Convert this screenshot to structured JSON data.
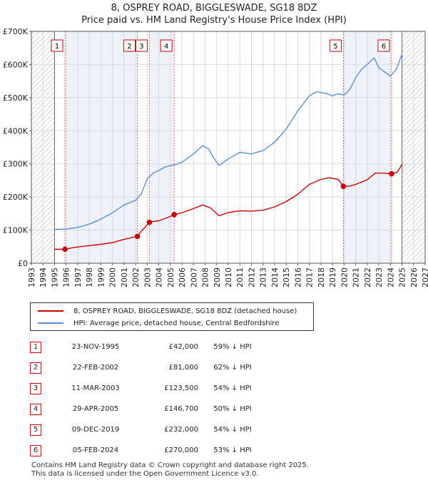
{
  "header": {
    "title": "8, OSPREY ROAD, BIGGLESWADE, SG18 8DZ",
    "subtitle": "Price paid vs. HM Land Registry's House Price Index (HPI)"
  },
  "legend": {
    "property_label": "8, OSPREY ROAD, BIGGLESWADE, SG18 8DZ (detached house)",
    "hpi_label": "HPI: Average price, detached house, Central Bedfordshire"
  },
  "colors": {
    "property": "#cc0000",
    "hpi": "#5b8fd4",
    "shade": "#eef2fb",
    "hatch": "#999999",
    "grid": "#d9d9d9",
    "marker_line": "#e06666"
  },
  "chart_data": {
    "type": "line",
    "xlim": [
      1993,
      2027
    ],
    "ylim": [
      0,
      700000
    ],
    "x_ticks": [
      1993,
      1994,
      1995,
      1996,
      1997,
      1998,
      1999,
      2000,
      2001,
      2002,
      2003,
      2004,
      2005,
      2006,
      2007,
      2008,
      2009,
      2010,
      2011,
      2012,
      2013,
      2014,
      2015,
      2016,
      2017,
      2018,
      2019,
      2020,
      2021,
      2022,
      2023,
      2024,
      2025,
      2026,
      2027
    ],
    "y_ticks": [
      {
        "value": 0,
        "label": "£0"
      },
      {
        "value": 100000,
        "label": "£100K"
      },
      {
        "value": 200000,
        "label": "£200K"
      },
      {
        "value": 300000,
        "label": "£300K"
      },
      {
        "value": 400000,
        "label": "£400K"
      },
      {
        "value": 500000,
        "label": "£500K"
      },
      {
        "value": 600000,
        "label": "£600K"
      },
      {
        "value": 700000,
        "label": "£700K"
      }
    ],
    "grid": true,
    "data_range_x": [
      1995.0,
      2025.0
    ],
    "series": [
      {
        "name": "8, OSPREY ROAD, BIGGLESWADE, SG18 8DZ (detached house)",
        "color": "#cc0000",
        "x": [
          1995.0,
          1995.9,
          1996.5,
          1997.0,
          1998.0,
          1999.0,
          2000.0,
          2001.0,
          2002.15,
          2002.5,
          2003.19,
          2003.5,
          2004.0,
          2004.7,
          2005.33,
          2006.0,
          2007.0,
          2007.8,
          2008.5,
          2009.2,
          2010.0,
          2011.0,
          2012.0,
          2013.0,
          2014.0,
          2015.0,
          2016.0,
          2017.0,
          2018.0,
          2018.7,
          2019.5,
          2019.94,
          2020.5,
          2021.0,
          2022.0,
          2022.7,
          2023.3,
          2024.1,
          2024.6,
          2025.0
        ],
        "y": [
          42000,
          42000,
          46000,
          49000,
          53000,
          57000,
          62000,
          72000,
          81000,
          97000,
          123500,
          126000,
          128000,
          137000,
          146700,
          152000,
          165000,
          176000,
          166000,
          143000,
          153000,
          158000,
          157000,
          160000,
          170000,
          186000,
          208000,
          238000,
          253000,
          258000,
          253000,
          232000,
          233000,
          238000,
          252000,
          272000,
          272000,
          270000,
          275000,
          298000
        ]
      },
      {
        "name": "HPI: Average price, detached house, Central Bedfordshire",
        "color": "#5b8fd4",
        "x": [
          1995.0,
          1996.0,
          1997.0,
          1998.0,
          1999.0,
          2000.0,
          2001.0,
          2002.0,
          2002.5,
          2003.0,
          2003.5,
          2004.0,
          2004.5,
          2005.0,
          2005.5,
          2006.0,
          2007.0,
          2007.8,
          2008.3,
          2008.7,
          2009.2,
          2010.0,
          2011.0,
          2012.0,
          2013.0,
          2014.0,
          2015.0,
          2016.0,
          2017.0,
          2017.6,
          2018.5,
          2019.0,
          2019.5,
          2020.0,
          2020.5,
          2021.0,
          2021.5,
          2022.0,
          2022.6,
          2023.0,
          2023.6,
          2024.0,
          2024.5,
          2025.0
        ],
        "y": [
          102000,
          103000,
          108000,
          118000,
          133000,
          152000,
          176000,
          190000,
          210000,
          255000,
          272000,
          280000,
          290000,
          295000,
          298000,
          305000,
          330000,
          355000,
          345000,
          320000,
          295000,
          315000,
          335000,
          330000,
          340000,
          365000,
          405000,
          460000,
          505000,
          518000,
          512000,
          505000,
          512000,
          508000,
          525000,
          560000,
          585000,
          600000,
          620000,
          590000,
          575000,
          565000,
          585000,
          630000
        ]
      }
    ],
    "sale_markers": [
      {
        "id": "1",
        "x": 1995.9,
        "y": 42000
      },
      {
        "id": "2",
        "x": 2002.15,
        "y": 81000
      },
      {
        "id": "3",
        "x": 2003.19,
        "y": 123500
      },
      {
        "id": "4",
        "x": 2005.33,
        "y": 146700
      },
      {
        "id": "5",
        "x": 2019.94,
        "y": 232000
      },
      {
        "id": "6",
        "x": 2024.1,
        "y": 270000
      }
    ],
    "shaded_spans": [
      [
        1995.9,
        2002.15
      ],
      [
        2003.19,
        2005.33
      ],
      [
        2019.94,
        2024.1
      ]
    ]
  },
  "sales": [
    {
      "id": "1",
      "date": "23-NOV-1995",
      "price": "£42,000",
      "hpi": "59% ↓ HPI"
    },
    {
      "id": "2",
      "date": "22-FEB-2002",
      "price": "£81,000",
      "hpi": "62% ↓ HPI"
    },
    {
      "id": "3",
      "date": "11-MAR-2003",
      "price": "£123,500",
      "hpi": "54% ↓ HPI"
    },
    {
      "id": "4",
      "date": "29-APR-2005",
      "price": "£146,700",
      "hpi": "50% ↓ HPI"
    },
    {
      "id": "5",
      "date": "09-DEC-2019",
      "price": "£232,000",
      "hpi": "54% ↓ HPI"
    },
    {
      "id": "6",
      "date": "05-FEB-2024",
      "price": "£270,000",
      "hpi": "53% ↓ HPI"
    }
  ],
  "footer": {
    "line1": "Contains HM Land Registry data © Crown copyright and database right 2025.",
    "line2": "This data is licensed under the Open Government Licence v3.0."
  }
}
